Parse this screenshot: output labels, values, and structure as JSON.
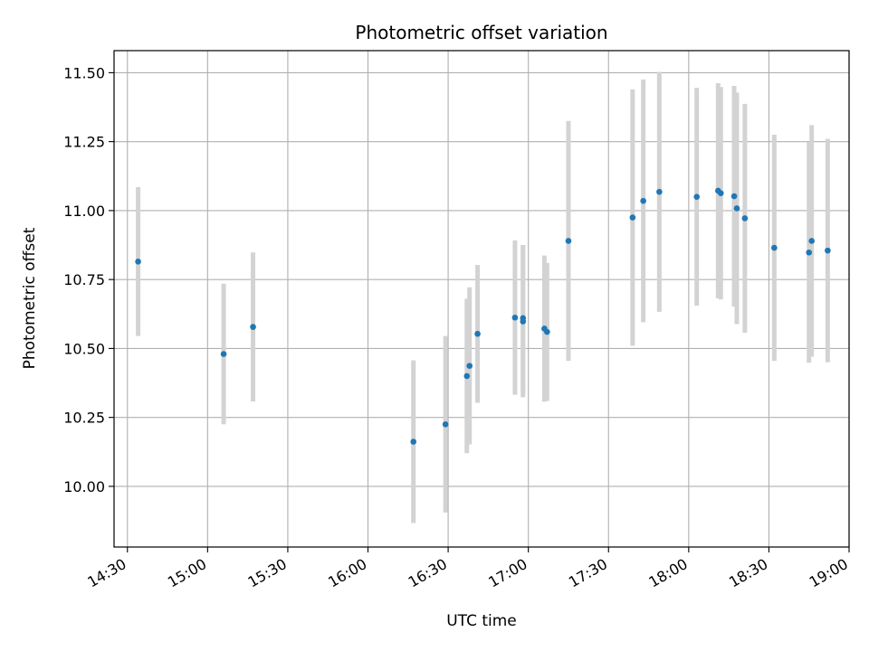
{
  "chart_data": {
    "type": "scatter",
    "title": "Photometric offset variation",
    "xlabel": "UTC time",
    "ylabel": "Photometric offset",
    "xlim": [
      "14:25",
      "19:00"
    ],
    "ylim": [
      9.78,
      11.58
    ],
    "x_ticks": [
      "14:30",
      "15:00",
      "15:30",
      "16:00",
      "16:30",
      "17:00",
      "17:30",
      "18:00",
      "18:30",
      "19:00"
    ],
    "y_ticks": [
      "10.00",
      "10.25",
      "10.50",
      "10.75",
      "11.00",
      "11.25",
      "11.50"
    ],
    "grid": true,
    "colors": {
      "point": "#1f77b4",
      "errorbar": "#d3d3d3",
      "grid": "#b0b0b0"
    },
    "points": [
      {
        "x": "14:34",
        "y": 10.815,
        "err": 0.27
      },
      {
        "x": "15:06",
        "y": 10.48,
        "err": 0.255
      },
      {
        "x": "15:17",
        "y": 10.578,
        "err": 0.27
      },
      {
        "x": "16:17",
        "y": 10.162,
        "err": 0.295
      },
      {
        "x": "16:29",
        "y": 10.225,
        "err": 0.32
      },
      {
        "x": "16:37",
        "y": 10.4,
        "err": 0.28
      },
      {
        "x": "16:38",
        "y": 10.437,
        "err": 0.285
      },
      {
        "x": "16:41",
        "y": 10.553,
        "err": 0.25
      },
      {
        "x": "16:55",
        "y": 10.612,
        "err": 0.28
      },
      {
        "x": "16:58",
        "y": 10.598,
        "err": 0.275
      },
      {
        "x": "16:58",
        "y": 10.61,
        "err": 0.265
      },
      {
        "x": "17:06",
        "y": 10.572,
        "err": 0.265
      },
      {
        "x": "17:07",
        "y": 10.56,
        "err": 0.25
      },
      {
        "x": "17:15",
        "y": 10.89,
        "err": 0.435
      },
      {
        "x": "17:39",
        "y": 10.975,
        "err": 0.465
      },
      {
        "x": "17:43",
        "y": 11.035,
        "err": 0.44
      },
      {
        "x": "17:49",
        "y": 11.068,
        "err": 0.435
      },
      {
        "x": "18:03",
        "y": 11.05,
        "err": 0.395
      },
      {
        "x": "18:11",
        "y": 11.072,
        "err": 0.39
      },
      {
        "x": "18:12",
        "y": 11.063,
        "err": 0.385
      },
      {
        "x": "18:17",
        "y": 11.052,
        "err": 0.4
      },
      {
        "x": "18:18",
        "y": 11.008,
        "err": 0.42
      },
      {
        "x": "18:21",
        "y": 10.972,
        "err": 0.415
      },
      {
        "x": "18:32",
        "y": 10.865,
        "err": 0.41
      },
      {
        "x": "18:45",
        "y": 10.848,
        "err": 0.4
      },
      {
        "x": "18:46",
        "y": 10.89,
        "err": 0.42
      },
      {
        "x": "18:52",
        "y": 10.855,
        "err": 0.405
      }
    ]
  }
}
